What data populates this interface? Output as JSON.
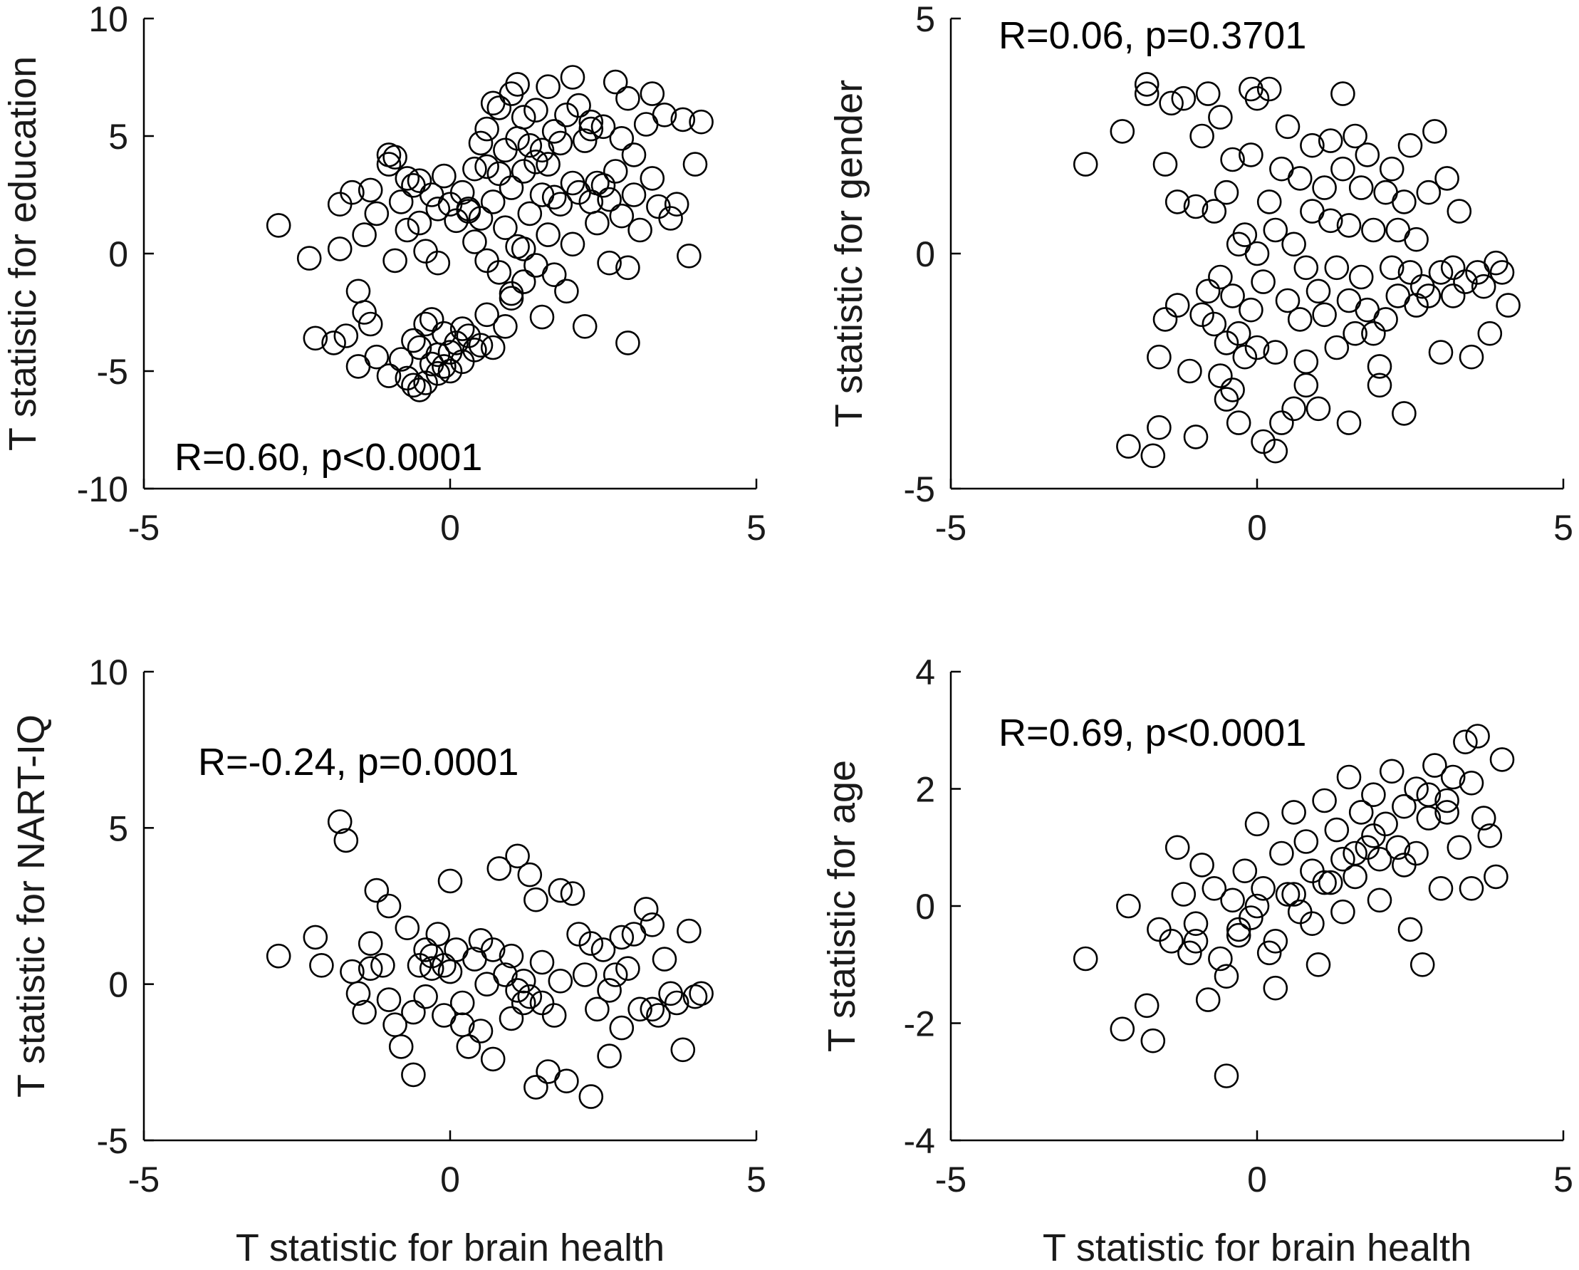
{
  "chart_data": [
    {
      "type": "scatter",
      "id": "education",
      "title": "",
      "xlabel": "",
      "ylabel": "T statistic for education",
      "xlim": [
        -5,
        5
      ],
      "ylim": [
        -10,
        10
      ],
      "xticks": [
        -5,
        0,
        5
      ],
      "yticks": [
        -10,
        -5,
        0,
        5,
        10
      ],
      "xtick_labels": [
        "-5",
        "0",
        "5"
      ],
      "ytick_labels": [
        "-10",
        "-5",
        "0",
        "5",
        "10"
      ],
      "annotation": "R=0.60, p<0.0001",
      "annotation_position": "bottom-left",
      "grid": false,
      "x": [
        -2.8,
        -2.3,
        -2.2,
        -1.9,
        -1.8,
        -1.8,
        -1.7,
        -1.6,
        -1.5,
        -1.5,
        -1.4,
        -1.4,
        -1.3,
        -1.3,
        -1.2,
        -1.2,
        -1.0,
        -1.0,
        -0.9,
        -0.9,
        -0.8,
        -0.8,
        -0.7,
        -0.7,
        -0.7,
        -0.6,
        -0.6,
        -0.6,
        -0.5,
        -0.5,
        -0.5,
        -0.4,
        -0.4,
        -0.4,
        -0.3,
        -0.3,
        -0.3,
        -0.2,
        -0.2,
        -0.2,
        -0.1,
        -0.1,
        -0.1,
        0.0,
        0.0,
        0.0,
        0.1,
        0.1,
        0.2,
        0.2,
        0.2,
        0.3,
        0.3,
        0.4,
        0.4,
        0.4,
        0.5,
        0.5,
        0.5,
        0.6,
        0.6,
        0.6,
        0.7,
        0.7,
        0.7,
        0.8,
        0.8,
        0.8,
        0.9,
        0.9,
        0.9,
        1.0,
        1.0,
        1.0,
        1.1,
        1.1,
        1.1,
        1.2,
        1.2,
        1.2,
        1.3,
        1.3,
        1.4,
        1.4,
        1.4,
        1.5,
        1.5,
        1.5,
        1.6,
        1.6,
        1.6,
        1.7,
        1.7,
        1.8,
        1.8,
        1.9,
        1.9,
        2.0,
        2.0,
        2.0,
        2.1,
        2.1,
        2.2,
        2.2,
        2.3,
        2.3,
        2.4,
        2.4,
        2.5,
        2.5,
        2.6,
        2.6,
        2.7,
        2.7,
        2.8,
        2.8,
        2.9,
        2.9,
        3.0,
        3.0,
        3.1,
        3.2,
        3.3,
        3.3,
        3.4,
        3.5,
        3.6,
        3.7,
        3.8,
        3.9,
        4.0,
        4.1,
        -1.0,
        -0.5,
        0.3,
        1.2,
        1.7,
        2.3,
        2.9,
        1.0,
        0.6,
        -0.2
      ],
      "y": [
        1.2,
        -0.2,
        -3.6,
        -3.8,
        2.1,
        0.2,
        -3.5,
        2.6,
        -1.6,
        -4.8,
        -2.5,
        0.8,
        2.7,
        -3.0,
        -4.4,
        1.7,
        3.8,
        -5.2,
        -0.3,
        4.1,
        -4.5,
        2.2,
        -5.3,
        1.0,
        3.2,
        -3.7,
        -5.6,
        2.9,
        -4.0,
        -5.8,
        1.3,
        -3.0,
        -5.5,
        0.1,
        -2.8,
        -4.7,
        2.5,
        -4.3,
        -5.1,
        -0.4,
        -3.4,
        -4.8,
        3.3,
        2.1,
        -5.0,
        -4.2,
        -3.8,
        1.4,
        -3.2,
        2.6,
        -4.6,
        -3.5,
        1.8,
        -4.1,
        0.5,
        3.6,
        -3.9,
        4.7,
        1.5,
        -2.6,
        5.3,
        -0.3,
        -4.0,
        2.2,
        6.4,
        -0.8,
        3.4,
        6.2,
        -3.1,
        1.1,
        4.4,
        -1.9,
        2.8,
        6.8,
        0.3,
        4.9,
        7.2,
        -1.2,
        3.5,
        5.8,
        1.7,
        4.6,
        -0.5,
        3.9,
        6.1,
        -2.7,
        2.5,
        4.4,
        0.8,
        3.8,
        7.1,
        -0.9,
        5.2,
        2.1,
        4.7,
        -1.6,
        5.9,
        0.4,
        3.0,
        7.5,
        2.6,
        6.3,
        -3.1,
        4.8,
        2.2,
        5.3,
        1.3,
        3.0,
        2.9,
        5.4,
        -0.4,
        2.3,
        3.5,
        7.3,
        1.6,
        4.9,
        -0.6,
        6.6,
        2.5,
        4.2,
        1.0,
        5.5,
        3.2,
        6.8,
        2.0,
        5.9,
        1.5,
        2.1,
        5.7,
        -0.1,
        3.8,
        5.6,
        4.2,
        3.1,
        1.9,
        0.2,
        2.4,
        5.6,
        -3.8,
        -1.7,
        3.7,
        1.9
      ],
      "marker": "circle-open"
    },
    {
      "type": "scatter",
      "id": "gender",
      "title": "",
      "xlabel": "",
      "ylabel": "T statistic for gender",
      "xlim": [
        -5,
        5
      ],
      "ylim": [
        -5,
        5
      ],
      "xticks": [
        -5,
        0,
        5
      ],
      "yticks": [
        -5,
        0,
        5
      ],
      "xtick_labels": [
        "-5",
        "0",
        "5"
      ],
      "ytick_labels": [
        "-5",
        "0",
        "5"
      ],
      "annotation": "R=0.06, p=0.3701",
      "annotation_position": "top-left",
      "grid": false,
      "x": [
        -2.8,
        -2.2,
        -2.1,
        -1.8,
        -1.8,
        -1.7,
        -1.6,
        -1.6,
        -1.5,
        -1.5,
        -1.4,
        -1.3,
        -1.3,
        -1.2,
        -1.1,
        -1.0,
        -1.0,
        -0.9,
        -0.8,
        -0.8,
        -0.7,
        -0.7,
        -0.6,
        -0.6,
        -0.6,
        -0.5,
        -0.5,
        -0.5,
        -0.4,
        -0.4,
        -0.4,
        -0.3,
        -0.3,
        -0.3,
        -0.2,
        -0.2,
        -0.1,
        -0.1,
        -0.1,
        0.0,
        0.0,
        0.0,
        0.1,
        0.1,
        0.2,
        0.2,
        0.3,
        0.3,
        0.4,
        0.4,
        0.5,
        0.5,
        0.6,
        0.6,
        0.7,
        0.7,
        0.8,
        0.8,
        0.9,
        0.9,
        1.0,
        1.0,
        1.1,
        1.1,
        1.2,
        1.2,
        1.3,
        1.3,
        1.4,
        1.4,
        1.5,
        1.5,
        1.6,
        1.6,
        1.7,
        1.7,
        1.8,
        1.8,
        1.9,
        1.9,
        2.0,
        2.1,
        2.1,
        2.2,
        2.2,
        2.3,
        2.3,
        2.4,
        2.4,
        2.5,
        2.5,
        2.6,
        2.6,
        2.7,
        2.8,
        2.8,
        2.9,
        3.0,
        3.0,
        3.1,
        3.2,
        3.2,
        3.3,
        3.4,
        3.5,
        3.6,
        3.7,
        3.8,
        3.9,
        4.0,
        4.1,
        0.3,
        1.5,
        -0.9,
        0.8,
        2.0
      ],
      "y": [
        1.9,
        2.6,
        -4.1,
        3.6,
        3.4,
        -4.3,
        -2.2,
        -3.7,
        -1.4,
        1.9,
        3.2,
        -1.1,
        1.1,
        3.3,
        -2.5,
        -3.9,
        1.0,
        2.5,
        -0.8,
        3.4,
        -1.5,
        0.9,
        -2.6,
        -0.5,
        2.9,
        -3.1,
        -1.9,
        1.3,
        -0.9,
        -2.9,
        2.0,
        -1.7,
        -3.6,
        0.2,
        -2.2,
        0.4,
        -1.2,
        2.1,
        3.5,
        -2.0,
        0.0,
        3.3,
        -4.0,
        -0.6,
        1.1,
        3.5,
        -2.1,
        0.5,
        -3.6,
        1.8,
        -1.0,
        2.7,
        -3.3,
        0.2,
        -1.4,
        1.6,
        -2.8,
        -0.3,
        2.3,
        0.9,
        -3.3,
        -0.8,
        1.4,
        -1.3,
        2.4,
        0.7,
        -2.0,
        -0.3,
        1.8,
        3.4,
        -1.0,
        0.6,
        2.5,
        -1.7,
        -0.5,
        1.4,
        -1.2,
        2.1,
        -1.7,
        0.5,
        -2.8,
        1.3,
        -1.4,
        -0.3,
        1.8,
        -0.9,
        0.5,
        -3.4,
        1.1,
        -0.4,
        2.3,
        -1.1,
        0.3,
        -0.7,
        1.3,
        -0.9,
        2.6,
        -2.1,
        -0.4,
        1.6,
        -0.3,
        -0.9,
        0.9,
        -0.6,
        -2.2,
        -0.4,
        -0.7,
        -1.7,
        -0.2,
        -0.4,
        -1.1,
        -4.2,
        -3.6,
        -1.3,
        -2.3,
        -2.4
      ],
      "marker": "circle-open"
    },
    {
      "type": "scatter",
      "id": "nart-iq",
      "title": "",
      "xlabel": "T statistic for brain health",
      "ylabel": "T statistic for NART-IQ",
      "xlim": [
        -5,
        5
      ],
      "ylim": [
        -5,
        10
      ],
      "xticks": [
        -5,
        0,
        5
      ],
      "yticks": [
        -5,
        0,
        5,
        10
      ],
      "xtick_labels": [
        "-5",
        "0",
        "5"
      ],
      "ytick_labels": [
        "-5",
        "0",
        "5",
        "10"
      ],
      "annotation": "R=-0.24, p=0.0001",
      "annotation_position": "top-left",
      "grid": false,
      "x": [
        -2.8,
        -2.2,
        -2.1,
        -1.8,
        -1.7,
        -1.6,
        -1.5,
        -1.4,
        -1.3,
        -1.3,
        -1.2,
        -1.1,
        -1.0,
        -0.9,
        -0.8,
        -0.7,
        -0.6,
        -0.5,
        -0.4,
        -0.4,
        -0.3,
        -0.2,
        -0.1,
        0.0,
        0.0,
        0.1,
        0.2,
        0.3,
        0.4,
        0.5,
        0.6,
        0.7,
        0.8,
        0.9,
        1.0,
        1.0,
        1.1,
        1.2,
        1.2,
        1.3,
        1.4,
        1.4,
        1.5,
        1.6,
        1.7,
        1.8,
        1.9,
        2.0,
        2.1,
        2.2,
        2.3,
        2.4,
        2.5,
        2.6,
        2.7,
        2.8,
        2.9,
        3.0,
        3.1,
        3.2,
        3.3,
        3.4,
        3.5,
        3.6,
        3.7,
        3.8,
        3.9,
        4.0,
        4.1,
        -0.6,
        -0.3,
        0.2,
        0.7,
        1.1,
        1.5,
        2.3,
        2.8,
        -1.0,
        0.5,
        1.8,
        3.3,
        -0.1,
        1.3,
        2.6
      ],
      "y": [
        0.9,
        1.5,
        0.6,
        5.2,
        4.6,
        0.4,
        -0.3,
        -0.9,
        0.5,
        1.3,
        3.0,
        0.6,
        2.5,
        -1.3,
        -2.0,
        1.8,
        -2.9,
        0.6,
        1.1,
        -0.4,
        0.9,
        1.6,
        -1.0,
        3.3,
        0.4,
        1.1,
        -0.6,
        -2.0,
        0.8,
        -1.5,
        0.0,
        -2.4,
        3.7,
        0.3,
        -1.1,
        0.9,
        4.1,
        0.1,
        -0.6,
        3.5,
        2.7,
        -3.3,
        -0.6,
        -2.8,
        -1.0,
        3.0,
        -3.1,
        2.9,
        1.6,
        0.3,
        -3.6,
        -0.8,
        1.1,
        -2.3,
        0.3,
        -1.4,
        0.5,
        1.6,
        -0.8,
        2.4,
        1.9,
        -1.0,
        0.8,
        -0.3,
        -0.6,
        -2.1,
        1.7,
        -0.4,
        -0.3,
        -0.9,
        0.5,
        -1.3,
        1.1,
        -0.2,
        0.7,
        1.3,
        1.5,
        -0.5,
        1.4,
        0.1,
        -0.8,
        0.6,
        -0.4,
        -0.2
      ],
      "marker": "circle-open"
    },
    {
      "type": "scatter",
      "id": "age",
      "title": "",
      "xlabel": "T statistic for brain health",
      "ylabel": "T statistic for age",
      "xlim": [
        -5,
        5
      ],
      "ylim": [
        -4,
        4
      ],
      "xticks": [
        -5,
        0,
        5
      ],
      "yticks": [
        -4,
        -2,
        0,
        2,
        4
      ],
      "xtick_labels": [
        "-5",
        "0",
        "5"
      ],
      "ytick_labels": [
        "-4",
        "-2",
        "0",
        "2",
        "4"
      ],
      "annotation": "R=0.69, p<0.0001",
      "annotation_position": "top-left",
      "grid": false,
      "x": [
        -2.8,
        -2.2,
        -2.1,
        -1.8,
        -1.7,
        -1.6,
        -1.4,
        -1.3,
        -1.2,
        -1.1,
        -1.0,
        -0.9,
        -0.8,
        -0.7,
        -0.6,
        -0.5,
        -0.4,
        -0.3,
        -0.2,
        -0.1,
        0.0,
        0.1,
        0.2,
        0.3,
        0.4,
        0.5,
        0.6,
        0.7,
        0.8,
        0.9,
        1.0,
        1.1,
        1.2,
        1.3,
        1.4,
        1.5,
        1.6,
        1.7,
        1.8,
        1.9,
        2.0,
        2.1,
        2.2,
        2.3,
        2.4,
        2.5,
        2.6,
        2.7,
        2.8,
        2.9,
        3.0,
        3.1,
        3.2,
        3.3,
        3.4,
        3.5,
        3.6,
        3.7,
        3.8,
        3.9,
        4.0,
        -0.5,
        0.3,
        0.9,
        1.4,
        2.0,
        2.6,
        3.1,
        -1.0,
        0.0,
        1.1,
        1.9,
        2.4,
        3.5,
        -0.3,
        0.6,
        1.6,
        2.8
      ],
      "y": [
        -0.9,
        -2.1,
        0.0,
        -1.7,
        -2.3,
        -0.4,
        -0.6,
        1.0,
        0.2,
        -0.8,
        -0.3,
        0.7,
        -1.6,
        0.3,
        -0.9,
        -2.9,
        0.1,
        -0.5,
        0.6,
        -0.2,
        1.4,
        0.3,
        -0.8,
        -1.4,
        0.9,
        0.2,
        1.6,
        -0.1,
        1.1,
        0.6,
        -1.0,
        1.8,
        0.4,
        1.3,
        0.8,
        2.2,
        0.5,
        1.6,
        1.0,
        1.9,
        0.1,
        1.4,
        2.3,
        1.0,
        1.7,
        -0.4,
        2.0,
        -1.0,
        1.5,
        2.4,
        0.3,
        1.8,
        2.2,
        1.0,
        2.8,
        0.3,
        2.9,
        1.5,
        1.2,
        0.5,
        2.5,
        -1.2,
        -0.6,
        -0.3,
        -0.1,
        0.8,
        0.9,
        1.6,
        -0.6,
        0.0,
        0.4,
        1.2,
        0.7,
        2.1,
        -0.4,
        0.2,
        0.9,
        1.9
      ],
      "marker": "circle-open"
    }
  ]
}
